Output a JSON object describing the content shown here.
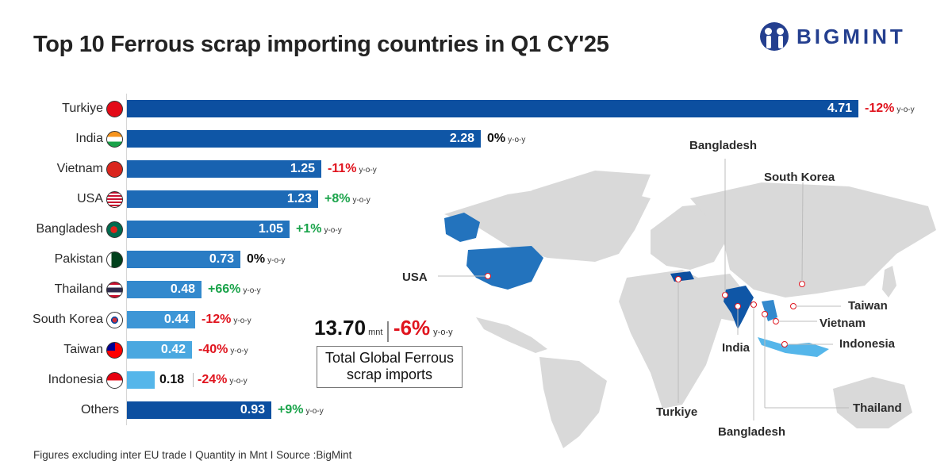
{
  "title": "Top 10 Ferrous scrap importing countries in Q1 CY'25",
  "logo": {
    "text": "BIGMINT",
    "color": "#243f8f"
  },
  "yoy_suffix": "y-o-y",
  "rows": [
    {
      "country": "Turkiye",
      "flag": "turkey-flag-icon",
      "value": "4.71",
      "yoy": "-12%",
      "sign": "neg",
      "color": "#0c4fa0"
    },
    {
      "country": "India",
      "flag": "india-flag-icon",
      "value": "2.28",
      "yoy": "0%",
      "sign": "zero",
      "color": "#0f56a6"
    },
    {
      "country": "Vietnam",
      "flag": "vietnam-flag-icon",
      "value": "1.25",
      "yoy": "-11%",
      "sign": "neg",
      "color": "#1862b0"
    },
    {
      "country": "USA",
      "flag": "usa-flag-icon",
      "value": "1.23",
      "yoy": "+8%",
      "sign": "pos",
      "color": "#1d6ab6"
    },
    {
      "country": "Bangladesh",
      "flag": "bangladesh-flag-icon",
      "value": "1.05",
      "yoy": "+1%",
      "sign": "pos",
      "color": "#2373bd"
    },
    {
      "country": "Pakistan",
      "flag": "pakistan-flag-icon",
      "value": "0.73",
      "yoy": "0%",
      "sign": "zero",
      "color": "#2a7cc4"
    },
    {
      "country": "Thailand",
      "flag": "thailand-flag-icon",
      "value": "0.48",
      "yoy": "+66%",
      "sign": "pos",
      "color": "#3389cd"
    },
    {
      "country": "South Korea",
      "flag": "south-korea-flag-icon",
      "value": "0.44",
      "yoy": "-12%",
      "sign": "neg",
      "color": "#3d96d6"
    },
    {
      "country": "Taiwan",
      "flag": "taiwan-flag-icon",
      "value": "0.42",
      "yoy": "-40%",
      "sign": "neg",
      "color": "#4aa8e0"
    },
    {
      "country": "Indonesia",
      "flag": "indonesia-flag-icon",
      "value": "0.18",
      "yoy": "-24%",
      "sign": "neg",
      "color": "#55b6ea"
    },
    {
      "country": "Others",
      "flag": "",
      "value": "0.93",
      "yoy": "+9%",
      "sign": "pos",
      "color": "#0c4fa0"
    }
  ],
  "total": {
    "value": "13.70",
    "unit": "mnt",
    "yoy": "-6%",
    "suffix": "y-o-y",
    "caption_line1": "Total Global Ferrous",
    "caption_line2": "scrap imports"
  },
  "map_labels": {
    "usa": "USA",
    "bangladesh_top": "Bangladesh",
    "south_korea": "South Korea",
    "taiwan": "Taiwan",
    "vietnam": "Vietnam",
    "indonesia": "Indonesia",
    "india": "India",
    "turkiye": "Turkiye",
    "bangladesh_bottom": "Bangladesh",
    "thailand": "Thailand"
  },
  "footer": "Figures excluding inter EU trade  I  Quantity in Mnt  I  Source :BigMint",
  "chart_data": {
    "type": "bar",
    "orientation": "horizontal",
    "title": "Top 10 Ferrous scrap importing countries in Q1 CY'25",
    "categories": [
      "Turkiye",
      "India",
      "Vietnam",
      "USA",
      "Bangladesh",
      "Pakistan",
      "Thailand",
      "South Korea",
      "Taiwan",
      "Indonesia",
      "Others"
    ],
    "values": [
      4.71,
      2.28,
      1.25,
      1.23,
      1.05,
      0.73,
      0.48,
      0.44,
      0.42,
      0.18,
      0.93
    ],
    "yoy_change_pct": [
      -12,
      0,
      -11,
      8,
      1,
      0,
      66,
      -12,
      -40,
      -24,
      9
    ],
    "unit": "Mnt",
    "xlabel": "",
    "ylabel": "",
    "grid": false,
    "annotations": [
      "Total Global Ferrous scrap imports: 13.70 mnt, -6% y-o-y",
      "Figures excluding inter EU trade",
      "Source: BigMint"
    ]
  }
}
